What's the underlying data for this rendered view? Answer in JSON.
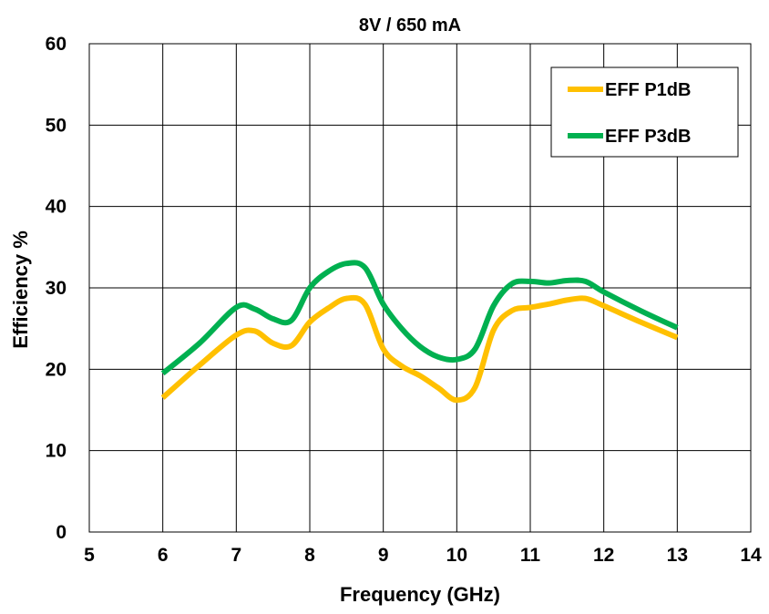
{
  "chart_data": {
    "type": "line",
    "title": "8V / 650 mA",
    "xlabel": "Frequency (GHz)",
    "ylabel": "Efficiency %",
    "xlim": [
      5,
      14
    ],
    "ylim": [
      0,
      60
    ],
    "x_ticks": [
      "5",
      "6",
      "7",
      "8",
      "9",
      "10",
      "11",
      "12",
      "13",
      "14"
    ],
    "y_ticks": [
      "0",
      "10",
      "20",
      "30",
      "40",
      "50",
      "60"
    ],
    "grid": true,
    "legend_position": "top-right",
    "series": [
      {
        "name": "EFF P1dB",
        "color": "#FFC000",
        "x": [
          6,
          6.5,
          7,
          7.25,
          7.5,
          7.75,
          8,
          8.25,
          8.5,
          8.75,
          9,
          9.25,
          9.5,
          9.75,
          10,
          10.25,
          10.5,
          10.75,
          11,
          11.25,
          11.5,
          11.75,
          12,
          12.5,
          13
        ],
        "values": [
          16.5,
          20.5,
          24.2,
          24.7,
          23.2,
          22.9,
          25.8,
          27.5,
          28.7,
          28.0,
          22.5,
          20.4,
          19.2,
          17.7,
          16.2,
          17.8,
          24.8,
          27.2,
          27.6,
          28.0,
          28.5,
          28.7,
          27.8,
          25.8,
          23.9
        ]
      },
      {
        "name": "EFF P3dB",
        "color": "#00B050",
        "x": [
          6,
          6.5,
          7,
          7.25,
          7.5,
          7.75,
          8,
          8.25,
          8.5,
          8.75,
          9,
          9.25,
          9.5,
          9.75,
          10,
          10.25,
          10.5,
          10.75,
          11,
          11.25,
          11.5,
          11.75,
          12,
          12.5,
          13
        ],
        "values": [
          19.5,
          23.2,
          27.6,
          27.4,
          26.2,
          26.0,
          30.0,
          32.0,
          33.0,
          32.5,
          28.0,
          25.0,
          22.8,
          21.5,
          21.2,
          22.5,
          27.8,
          30.5,
          30.8,
          30.6,
          30.9,
          30.8,
          29.5,
          27.2,
          25.1
        ]
      }
    ]
  }
}
